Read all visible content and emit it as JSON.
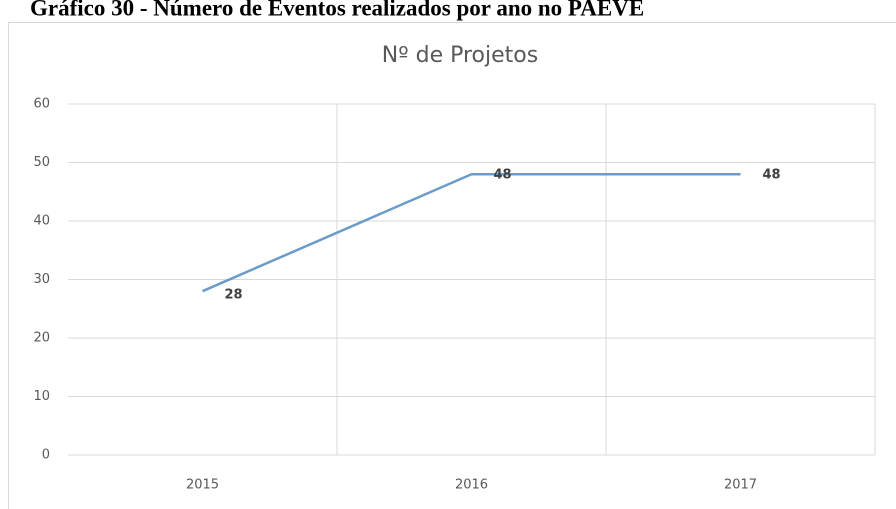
{
  "caption": "Gráfico 30 - Número de Eventos realizados por ano no PAEVE",
  "chart_data": {
    "type": "line",
    "title": "Nº de Projetos",
    "categories": [
      "2015",
      "2016",
      "2017"
    ],
    "series": [
      {
        "name": "Nº de Projetos",
        "color": "#6b9bc8",
        "values": [
          28,
          48,
          48
        ]
      }
    ],
    "ylim": [
      0,
      60
    ],
    "yticks": [
      0,
      10,
      20,
      30,
      40,
      50,
      60
    ],
    "grid": true,
    "data_labels": true
  }
}
